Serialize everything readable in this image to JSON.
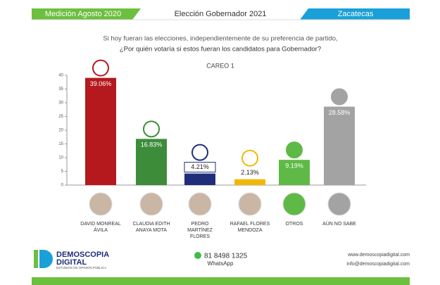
{
  "header": {
    "left": "Medición Agosto 2020",
    "center": "Elección Gobernador 2021",
    "right": "Zacatecas"
  },
  "chart_data": {
    "type": "bar",
    "subtitle": [
      "Si hoy fueran las elecciones, independientemente de su preferencia de partido,",
      "¿Por quién votaría si estos fueran los candidatos para Gobernador?"
    ],
    "title": "CAREO 1",
    "categories": [
      "DAVID MONREAL ÁVILA",
      "CLAUDIA EDITH ANAYA MOTA",
      "PEDRO MARTÍNEZ FLORES",
      "RAFAEL FLORES MENDOZA",
      "OTROS",
      "AÚN NO SABE"
    ],
    "values": [
      39.06,
      16.83,
      4.21,
      2.13,
      9.19,
      28.58
    ],
    "value_labels": [
      "39.06%",
      "16.83%",
      "4.21%",
      "2.13%",
      "9.19%",
      "28.58%"
    ],
    "colors": [
      "#b5191d",
      "#3d8c3a",
      "#1f2d7a",
      "#f2b705",
      "#5fb946",
      "#a3a3a3"
    ],
    "ylim": [
      0,
      40
    ],
    "yticks": [
      0,
      5,
      10,
      15,
      20,
      25,
      30,
      35,
      40
    ]
  },
  "footer": {
    "brand": "DEMOSCOPIA",
    "brand2": "DIGITAL",
    "tagline": "ESTUDIOS DE OPINIÓN PÚBLICA",
    "phone": "81 8498 1325",
    "whatsapp": "WhatsApp",
    "web": "www.demoscopiadigital.com",
    "email": "info@demoscopiadigital.com"
  }
}
